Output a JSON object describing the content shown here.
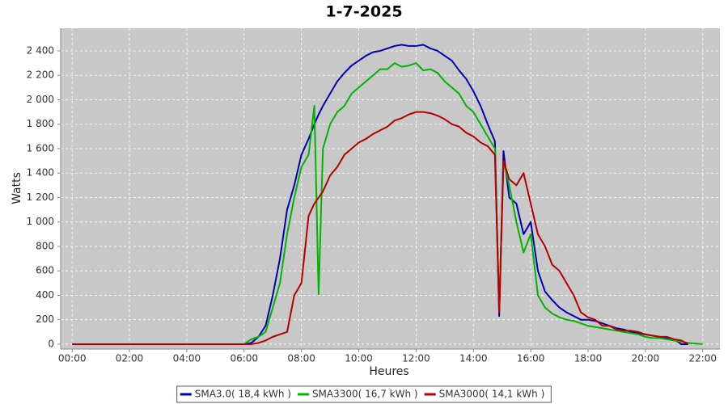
{
  "chart_data": {
    "type": "line",
    "title": "1-7-2025",
    "x_label": "Heures",
    "y_label": "Watts",
    "x": [
      0,
      6,
      6.25,
      6.5,
      6.75,
      7,
      7.25,
      7.5,
      7.75,
      8,
      8.25,
      8.45,
      8.6,
      8.75,
      9,
      9.25,
      9.5,
      9.75,
      10,
      10.25,
      10.5,
      10.75,
      11,
      11.25,
      11.5,
      11.75,
      12,
      12.25,
      12.5,
      12.75,
      13,
      13.25,
      13.5,
      13.75,
      14,
      14.25,
      14.5,
      14.75,
      14.9,
      15.05,
      15.25,
      15.5,
      15.75,
      16,
      16.25,
      16.5,
      16.75,
      17,
      17.25,
      17.5,
      17.75,
      18,
      18.25,
      18.5,
      18.75,
      19,
      19.25,
      19.5,
      19.75,
      20,
      20.25,
      20.5,
      20.75,
      21,
      21.25,
      21.5,
      22
    ],
    "series": [
      {
        "name": "SMA3.0( 18,4 kWh )",
        "color": "#0000b4",
        "values": [
          0,
          0,
          10,
          60,
          150,
          400,
          700,
          1100,
          1300,
          1550,
          1680,
          1800,
          1880,
          1950,
          2050,
          2150,
          2220,
          2280,
          2320,
          2360,
          2390,
          2400,
          2420,
          2440,
          2450,
          2440,
          2440,
          2450,
          2420,
          2400,
          2360,
          2320,
          2240,
          2170,
          2070,
          1950,
          1800,
          1660,
          230,
          1580,
          1200,
          1150,
          900,
          1000,
          600,
          430,
          360,
          300,
          260,
          230,
          200,
          200,
          190,
          170,
          150,
          130,
          120,
          100,
          90,
          80,
          70,
          60,
          50,
          40,
          0,
          0,
          null
        ]
      },
      {
        "name": "SMA3300( 16,7 kWh )",
        "color": "#00b400",
        "values": [
          0,
          0,
          40,
          60,
          100,
          300,
          500,
          900,
          1200,
          1450,
          1550,
          1950,
          410,
          1600,
          1800,
          1900,
          1950,
          2050,
          2100,
          2150,
          2200,
          2250,
          2250,
          2300,
          2270,
          2280,
          2300,
          2240,
          2250,
          2220,
          2150,
          2100,
          2050,
          1950,
          1900,
          1800,
          1700,
          1600,
          300,
          1500,
          1300,
          1000,
          750,
          900,
          400,
          300,
          250,
          220,
          200,
          190,
          170,
          150,
          140,
          130,
          120,
          110,
          100,
          90,
          80,
          60,
          50,
          50,
          40,
          30,
          20,
          10,
          0
        ]
      },
      {
        "name": "SMA3000( 14,1 kWh )",
        "color": "#b40000",
        "values": [
          0,
          0,
          0,
          10,
          30,
          60,
          80,
          100,
          400,
          500,
          1050,
          1150,
          1200,
          1250,
          1380,
          1450,
          1550,
          1600,
          1650,
          1680,
          1720,
          1750,
          1780,
          1830,
          1850,
          1880,
          1900,
          1900,
          1890,
          1870,
          1840,
          1800,
          1780,
          1730,
          1700,
          1650,
          1620,
          1550,
          260,
          1500,
          1350,
          1300,
          1400,
          1150,
          900,
          800,
          650,
          600,
          500,
          400,
          260,
          220,
          200,
          150,
          150,
          120,
          110,
          110,
          100,
          80,
          70,
          60,
          60,
          40,
          30,
          0,
          null
        ]
      }
    ],
    "xlim": [
      -0.4,
      22.6
    ],
    "xticks": [
      {
        "value": 0,
        "label": "00:00"
      },
      {
        "value": 2,
        "label": "02:00"
      },
      {
        "value": 4,
        "label": "04:00"
      },
      {
        "value": 6,
        "label": "06:00"
      },
      {
        "value": 8,
        "label": "08:00"
      },
      {
        "value": 10,
        "label": "10:00"
      },
      {
        "value": 12,
        "label": "12:00"
      },
      {
        "value": 14,
        "label": "14:00"
      },
      {
        "value": 16,
        "label": "16:00"
      },
      {
        "value": 18,
        "label": "18:00"
      },
      {
        "value": 20,
        "label": "20:00"
      },
      {
        "value": 22,
        "label": "22:00"
      }
    ],
    "ylim": [
      -40,
      2585
    ],
    "yticks": [
      0,
      200,
      400,
      600,
      800,
      {
        "value": 1000,
        "label": "1 000"
      },
      {
        "value": 1200,
        "label": "1 200"
      },
      {
        "value": 1400,
        "label": "1 400"
      },
      {
        "value": 1600,
        "label": "1 600"
      },
      {
        "value": 1800,
        "label": "1 800"
      },
      {
        "value": 2000,
        "label": "2 000"
      },
      {
        "value": 2200,
        "label": "2 200"
      },
      {
        "value": 2400,
        "label": "2 400"
      }
    ],
    "grid": true,
    "legend": "bottom"
  }
}
